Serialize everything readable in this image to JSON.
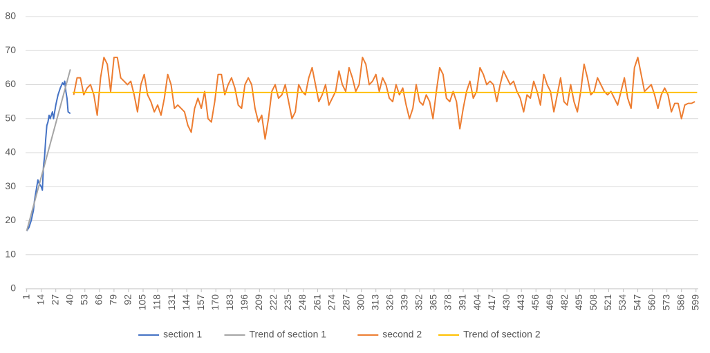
{
  "chart_data": {
    "type": "line",
    "xlim": [
      0,
      601
    ],
    "xticks": [
      1,
      14,
      27,
      40,
      53,
      66,
      79,
      92,
      105,
      118,
      131,
      144,
      157,
      170,
      183,
      196,
      209,
      222,
      235,
      248,
      261,
      274,
      287,
      300,
      313,
      326,
      339,
      352,
      365,
      378,
      391,
      404,
      417,
      430,
      443,
      456,
      469,
      482,
      495,
      508,
      521,
      534,
      547,
      560,
      573,
      586,
      599
    ],
    "ylim": [
      0,
      80
    ],
    "yticks": [
      0,
      10,
      20,
      30,
      40,
      50,
      60,
      70,
      80
    ],
    "grid": true,
    "legend": "bottom",
    "series": [
      {
        "name": "section 1",
        "color": "#4472c4",
        "x": [
          1,
          3,
          5,
          7,
          8,
          10,
          11,
          12,
          14,
          15,
          16,
          17,
          18,
          19,
          20,
          21,
          22,
          23,
          24,
          25,
          27,
          29,
          31,
          33,
          34,
          35,
          36,
          37,
          38,
          40
        ],
        "values": [
          17,
          18,
          20,
          23,
          26,
          30,
          32,
          31,
          30,
          29,
          36,
          39,
          44,
          48,
          49,
          51,
          50,
          51,
          52,
          50,
          54,
          57,
          59,
          60.5,
          60,
          61,
          58,
          56,
          52,
          51.5
        ]
      },
      {
        "name": "Trend of section 1",
        "color": "#a5a5a5",
        "x": [
          1,
          40
        ],
        "values": [
          17,
          64.5
        ]
      },
      {
        "name": "second 2",
        "color": "#ed7d31",
        "x": [
          43,
          46,
          49,
          52,
          55,
          58,
          61,
          64,
          67,
          70,
          73,
          76,
          79,
          82,
          85,
          88,
          91,
          94,
          97,
          100,
          103,
          106,
          109,
          112,
          115,
          118,
          121,
          124,
          127,
          130,
          133,
          136,
          139,
          142,
          145,
          148,
          151,
          154,
          157,
          160,
          163,
          166,
          169,
          172,
          175,
          178,
          181,
          184,
          187,
          190,
          193,
          196,
          199,
          202,
          205,
          208,
          211,
          214,
          217,
          220,
          223,
          226,
          229,
          232,
          235,
          238,
          241,
          244,
          247,
          250,
          253,
          256,
          259,
          262,
          265,
          268,
          271,
          274,
          277,
          280,
          283,
          286,
          289,
          292,
          295,
          298,
          301,
          304,
          307,
          310,
          313,
          316,
          319,
          322,
          325,
          328,
          331,
          334,
          337,
          340,
          343,
          346,
          349,
          352,
          355,
          358,
          361,
          364,
          367,
          370,
          373,
          376,
          379,
          382,
          385,
          388,
          391,
          394,
          397,
          400,
          403,
          406,
          409,
          412,
          415,
          418,
          421,
          424,
          427,
          430,
          433,
          436,
          439,
          442,
          445,
          448,
          451,
          454,
          457,
          460,
          463,
          466,
          469,
          472,
          475,
          478,
          481,
          484,
          487,
          490,
          493,
          496,
          499,
          502,
          505,
          508,
          511,
          514,
          517,
          520,
          523,
          526,
          529,
          532,
          535,
          538,
          541,
          544,
          547,
          550,
          553,
          556,
          559,
          562,
          565,
          568,
          571,
          574,
          577,
          580,
          583,
          586,
          589,
          592,
          595,
          598
        ],
        "values": [
          57,
          62,
          62,
          57,
          59,
          60,
          57,
          51,
          62,
          68,
          66,
          58,
          68,
          68,
          62,
          61,
          60,
          61,
          57,
          52,
          60,
          63,
          57,
          55,
          52,
          54,
          51,
          56,
          63,
          60,
          53,
          54,
          53,
          52,
          48,
          46,
          53,
          56,
          53,
          58,
          50,
          49,
          55,
          63,
          63,
          57,
          60,
          62,
          59,
          54,
          53,
          60,
          62,
          60,
          53,
          49,
          51,
          44,
          50,
          58,
          60,
          56,
          57,
          60,
          55,
          50,
          52,
          60,
          58,
          57,
          62,
          65,
          60,
          55,
          57,
          60,
          54,
          56,
          58,
          64,
          60,
          58,
          65,
          62,
          58,
          60,
          68,
          66,
          60,
          61,
          63,
          58,
          62,
          60,
          56,
          55,
          60,
          57,
          59,
          54,
          50,
          53,
          60,
          55,
          54,
          57,
          55,
          50,
          58,
          65,
          63,
          56,
          55,
          58,
          55,
          47,
          53,
          58,
          61,
          56,
          58,
          65,
          63,
          60,
          61,
          60,
          55,
          60,
          64,
          62,
          60,
          61,
          58,
          56,
          52,
          57,
          56,
          61,
          58,
          54,
          63,
          60,
          58,
          52,
          57,
          62,
          55,
          54,
          60,
          55,
          52,
          58,
          66,
          62,
          57,
          58,
          62,
          60,
          58,
          57,
          58,
          56,
          54,
          58,
          62,
          56,
          53,
          65,
          68,
          63,
          58,
          59,
          60,
          57,
          53,
          57,
          59,
          57,
          52,
          54.5,
          54.5,
          50,
          54,
          54.5,
          54.5,
          55
        ]
      },
      {
        "name": "Trend of section 2",
        "color": "#ffc000",
        "x": [
          42,
          600
        ],
        "values": [
          57.7,
          57.7
        ]
      }
    ]
  }
}
